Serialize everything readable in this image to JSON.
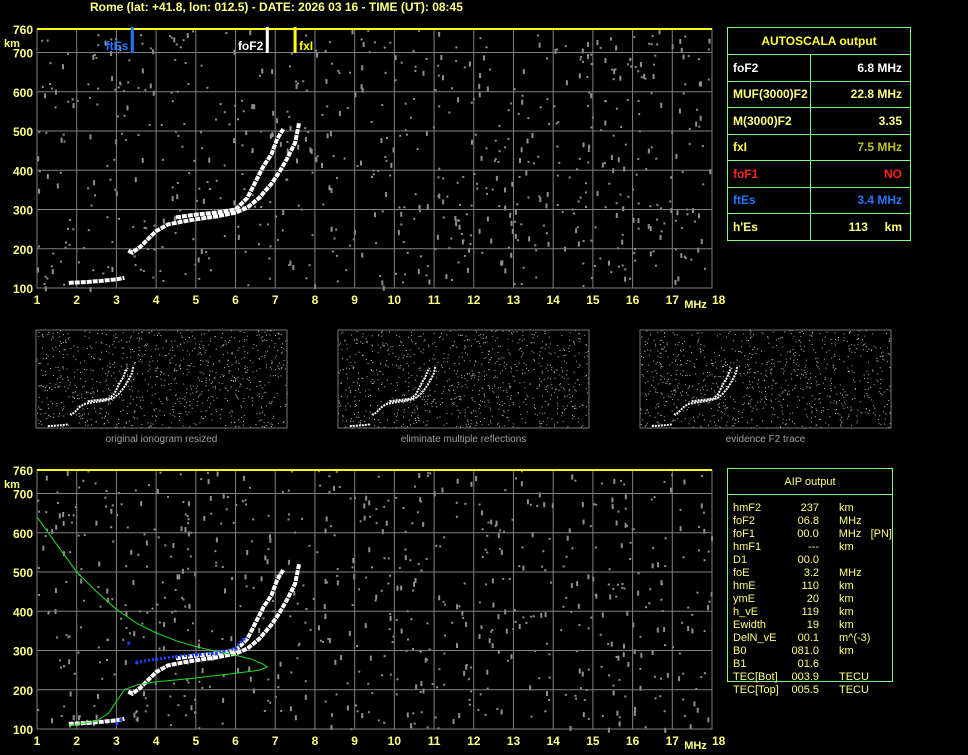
{
  "title": "Rome (lat: +41.8, lon: 012.5) - DATE: 2026 03 16 - TIME (UT): 08:45",
  "markers": {
    "ftEs": {
      "label": "ftEs",
      "freq": 3.4,
      "color": "#1e78ff"
    },
    "foF2": {
      "label": "foF2",
      "freq": 6.8,
      "color": "#ffffff"
    },
    "fxI": {
      "label": "fxI",
      "freq": 7.5,
      "color": "#ffff00"
    }
  },
  "autoscala": {
    "title": "AUTOSCALA output",
    "rows": [
      {
        "label": "foF2",
        "value": "6.8 MHz",
        "color": "#ffffff",
        "vcolor": "#ffffff"
      },
      {
        "label": "MUF(3000)F2",
        "value": "22.8 MHz",
        "color": "#ffff80",
        "vcolor": "#ffff80"
      },
      {
        "label": "M(3000)F2",
        "value": "3.35",
        "color": "#ffff80",
        "vcolor": "#ffff80"
      },
      {
        "label": "fxI",
        "value": "7.5 MHz",
        "color": "#ffff40",
        "vcolor": "#c0c020"
      },
      {
        "label": "foF1",
        "value": "NO",
        "color": "#ff2020",
        "vcolor": "#ff2020"
      },
      {
        "label": "ftEs",
        "value": "3.4 MHz",
        "color": "#1e78ff",
        "vcolor": "#1e78ff"
      },
      {
        "label": "h'Es",
        "value": "113     km",
        "color": "#ffff80",
        "vcolor": "#ffff80"
      }
    ]
  },
  "aip": {
    "title": "AIP output",
    "rows": [
      [
        "hmF2",
        "237",
        "km",
        ""
      ],
      [
        "foF2",
        "06.8",
        "MHz",
        ""
      ],
      [
        "foF1",
        "00.0",
        "MHz",
        "[PN]"
      ],
      [
        "hmF1",
        "---",
        "km",
        ""
      ],
      [
        "D1",
        "00.0",
        "",
        ""
      ],
      [
        "foE",
        "3.2",
        "MHz",
        ""
      ],
      [
        "hmE",
        "110",
        "km",
        ""
      ],
      [
        "ymE",
        "20",
        "km",
        ""
      ],
      [
        "h_vE",
        "119",
        "km",
        ""
      ],
      [
        "Ewidth",
        "19",
        "km",
        ""
      ],
      [
        "DelN_vE",
        "00.1",
        "m^(-3)",
        ""
      ],
      [
        "B0",
        "081.0",
        "km",
        ""
      ],
      [
        "B1",
        "01.6",
        "",
        ""
      ],
      [
        "TEC[Bot]",
        "003.9",
        "TECU",
        ""
      ],
      [
        "TEC[Top]",
        "005.5",
        "TECU",
        ""
      ]
    ]
  },
  "thumbnails": [
    "original ionogram resized",
    "eliminate multiple reflections",
    "evidence F2 trace"
  ],
  "chart_data": {
    "type": "scatter",
    "xlabel": "MHz",
    "ylabel": "km",
    "xlim": [
      1,
      18
    ],
    "ylim": [
      100,
      760
    ],
    "xticks": [
      "1",
      "2",
      "3",
      "4",
      "5",
      "6",
      "7",
      "8",
      "9",
      "10",
      "11",
      "12",
      "13",
      "14",
      "15",
      "16",
      "17",
      "18"
    ],
    "yticks": [
      "100",
      "200",
      "300",
      "400",
      "500",
      "600",
      "700",
      "760"
    ],
    "grid": true,
    "traces": {
      "E": [
        [
          1.8,
          113
        ],
        [
          2.2,
          115
        ],
        [
          2.6,
          118
        ],
        [
          3.0,
          122
        ],
        [
          3.2,
          126
        ]
      ],
      "F_o": [
        [
          3.3,
          195
        ],
        [
          3.4,
          190
        ],
        [
          3.6,
          205
        ],
        [
          3.8,
          225
        ],
        [
          4.0,
          245
        ],
        [
          4.3,
          262
        ],
        [
          4.7,
          270
        ],
        [
          5.0,
          275
        ],
        [
          5.5,
          282
        ],
        [
          6.0,
          292
        ],
        [
          6.3,
          305
        ],
        [
          6.6,
          330
        ],
        [
          6.9,
          365
        ],
        [
          7.1,
          395
        ],
        [
          7.3,
          430
        ],
        [
          7.5,
          470
        ],
        [
          7.6,
          520
        ]
      ],
      "F_x": [
        [
          4.5,
          280
        ],
        [
          5.0,
          287
        ],
        [
          5.5,
          292
        ],
        [
          6.0,
          300
        ],
        [
          6.3,
          330
        ],
        [
          6.5,
          370
        ],
        [
          6.7,
          410
        ],
        [
          6.9,
          440
        ],
        [
          7.05,
          480
        ],
        [
          7.2,
          505
        ]
      ]
    },
    "model_profile": [
      [
        1.0,
        640
      ],
      [
        1.5,
        570
      ],
      [
        2.0,
        500
      ],
      [
        2.5,
        450
      ],
      [
        3.0,
        405
      ],
      [
        3.5,
        370
      ],
      [
        4.0,
        345
      ],
      [
        4.5,
        325
      ],
      [
        5.0,
        310
      ],
      [
        5.5,
        298
      ],
      [
        6.0,
        288
      ],
      [
        6.4,
        278
      ],
      [
        6.7,
        265
      ],
      [
        6.8,
        258
      ],
      [
        6.6,
        250
      ],
      [
        6.0,
        242
      ],
      [
        5.0,
        230
      ],
      [
        4.0,
        220
      ],
      [
        3.5,
        212
      ],
      [
        3.2,
        200
      ],
      [
        3.0,
        170
      ],
      [
        2.8,
        140
      ],
      [
        2.5,
        120
      ],
      [
        2.0,
        112
      ],
      [
        1.8,
        110
      ]
    ],
    "fitted_points": [
      [
        3.0,
        115
      ],
      [
        3.1,
        125
      ],
      [
        3.5,
        270
      ],
      [
        4.0,
        278
      ],
      [
        4.5,
        285
      ],
      [
        5.0,
        290
      ],
      [
        5.5,
        293
      ],
      [
        6.0,
        305
      ],
      [
        6.2,
        330
      ],
      [
        3.3,
        320
      ]
    ]
  },
  "colors": {
    "axis_text": "#ffff80",
    "grid": "#808080",
    "frame": "#ffff00",
    "table_border": "#80ff80",
    "model": "#20e020",
    "fit": "#2040ff"
  }
}
